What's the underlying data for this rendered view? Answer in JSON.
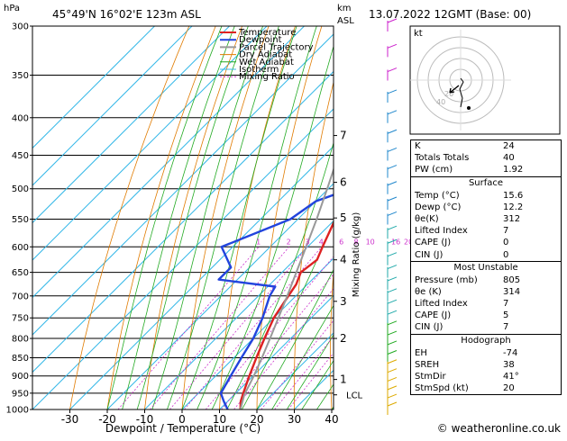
{
  "header": {
    "pressure_unit": "hPa",
    "location": "45°49'N 16°02'E 123m ASL",
    "km_unit": "km",
    "asl": "ASL",
    "valid": "13.07.2022 12GMT (Base: 00)"
  },
  "chart_data": {
    "type": "line",
    "title": "45°49'N 16°02'E 123m ASL",
    "xlabel": "Dewpoint / Temperature (°C)",
    "ylabel": "hPa",
    "xlim": [
      -40,
      40
    ],
    "ylim": [
      1000,
      300
    ],
    "y_scale": "log",
    "x_ticks": [
      -30,
      -20,
      -10,
      0,
      10,
      20,
      30,
      40
    ],
    "pressure_levels": [
      300,
      350,
      400,
      450,
      500,
      550,
      600,
      650,
      700,
      750,
      800,
      850,
      900,
      950,
      1000
    ],
    "skew": "skew-T",
    "series": [
      {
        "name": "Temperature",
        "color": "#dd2222",
        "points": [
          [
            1000,
            15.6
          ],
          [
            975,
            13.5
          ],
          [
            950,
            12
          ],
          [
            925,
            10.5
          ],
          [
            900,
            9
          ],
          [
            850,
            6
          ],
          [
            800,
            3
          ],
          [
            750,
            0
          ],
          [
            700,
            -2
          ],
          [
            675,
            -3
          ],
          [
            650,
            -5
          ],
          [
            625,
            -4
          ],
          [
            600,
            -6
          ],
          [
            550,
            -10
          ],
          [
            500,
            -15
          ],
          [
            450,
            -20
          ],
          [
            400,
            -26
          ],
          [
            350,
            -33
          ],
          [
            300,
            -42
          ]
        ]
      },
      {
        "name": "Dewpoint",
        "color": "#2244dd",
        "points": [
          [
            1000,
            12.2
          ],
          [
            975,
            9
          ],
          [
            950,
            6
          ],
          [
            900,
            4
          ],
          [
            850,
            2
          ],
          [
            800,
            0
          ],
          [
            750,
            -3
          ],
          [
            700,
            -7
          ],
          [
            680,
            -8
          ],
          [
            665,
            -25
          ],
          [
            640,
            -25
          ],
          [
            600,
            -33
          ],
          [
            550,
            -22
          ],
          [
            520,
            -20
          ],
          [
            500,
            -14
          ],
          [
            480,
            -10
          ],
          [
            450,
            -16
          ],
          [
            400,
            -26
          ],
          [
            350,
            -38
          ],
          [
            300,
            -50
          ]
        ]
      },
      {
        "name": "Parcel Trajectory",
        "color": "#999999",
        "points": [
          [
            1000,
            15.6
          ],
          [
            955,
            12.7
          ],
          [
            900,
            10.2
          ],
          [
            850,
            7.5
          ],
          [
            800,
            4.5
          ],
          [
            750,
            1.2
          ],
          [
            700,
            -2.3
          ],
          [
            650,
            -6.2
          ],
          [
            600,
            -10.4
          ],
          [
            550,
            -15
          ],
          [
            500,
            -20.3
          ],
          [
            450,
            -26.3
          ],
          [
            400,
            -33
          ],
          [
            350,
            -40.8
          ],
          [
            300,
            -49.5
          ]
        ]
      }
    ],
    "background_lines": [
      "Dry Adiabat",
      "Wet Adiabat",
      "Isotherm",
      "Mixing Ratio"
    ],
    "mixing_ratio_labels": [
      "1",
      "2",
      "3",
      "4",
      "6",
      "8",
      "10",
      "16",
      "20",
      "25"
    ],
    "km_levels": [
      {
        "km": "7",
        "p": 423
      },
      {
        "km": "6",
        "p": 490
      },
      {
        "km": "5",
        "p": 548
      },
      {
        "km": "4",
        "p": 625
      },
      {
        "km": "3",
        "p": 712
      },
      {
        "km": "2",
        "p": 800
      },
      {
        "km": "1",
        "p": 910
      }
    ],
    "lcl_label": "LCL",
    "lcl_p": 955,
    "right_axis_label": "Mixing Ratio (g/kg)"
  },
  "legend": [
    "Temperature",
    "Dewpoint",
    "Parcel Trajectory",
    "Dry Adiabat",
    "Wet Adiabat",
    "Isotherm",
    "Mixing Ratio"
  ],
  "hodograph": {
    "label": "kt",
    "ring_labels": [
      "40",
      "20"
    ]
  },
  "indices": {
    "rows": [
      {
        "label": "K",
        "value": "24"
      },
      {
        "label": "Totals Totals",
        "value": "40"
      },
      {
        "label": "PW (cm)",
        "value": "1.92"
      }
    ]
  },
  "surface": {
    "title": "Surface",
    "rows": [
      {
        "label": "Temp (°C)",
        "value": "15.6"
      },
      {
        "label": "Dewp (°C)",
        "value": "12.2"
      },
      {
        "label": "θe(K)",
        "value": "312"
      },
      {
        "label": "Lifted Index",
        "value": "7"
      },
      {
        "label": "CAPE (J)",
        "value": "0"
      },
      {
        "label": "CIN (J)",
        "value": "0"
      }
    ]
  },
  "most_unstable": {
    "title": "Most Unstable",
    "rows": [
      {
        "label": "Pressure (mb)",
        "value": "805"
      },
      {
        "label": "θe (K)",
        "value": "314"
      },
      {
        "label": "Lifted Index",
        "value": "7"
      },
      {
        "label": "CAPE (J)",
        "value": "5"
      },
      {
        "label": "CIN (J)",
        "value": "7"
      }
    ]
  },
  "hodograph_table": {
    "title": "Hodograph",
    "rows": [
      {
        "label": "EH",
        "value": "-74"
      },
      {
        "label": "SREH",
        "value": "38"
      },
      {
        "label": "StmDir",
        "value": "41°"
      },
      {
        "label": "StmSpd (kt)",
        "value": "20"
      }
    ]
  },
  "footer": {
    "credit": "© weatheronline.co.uk"
  }
}
